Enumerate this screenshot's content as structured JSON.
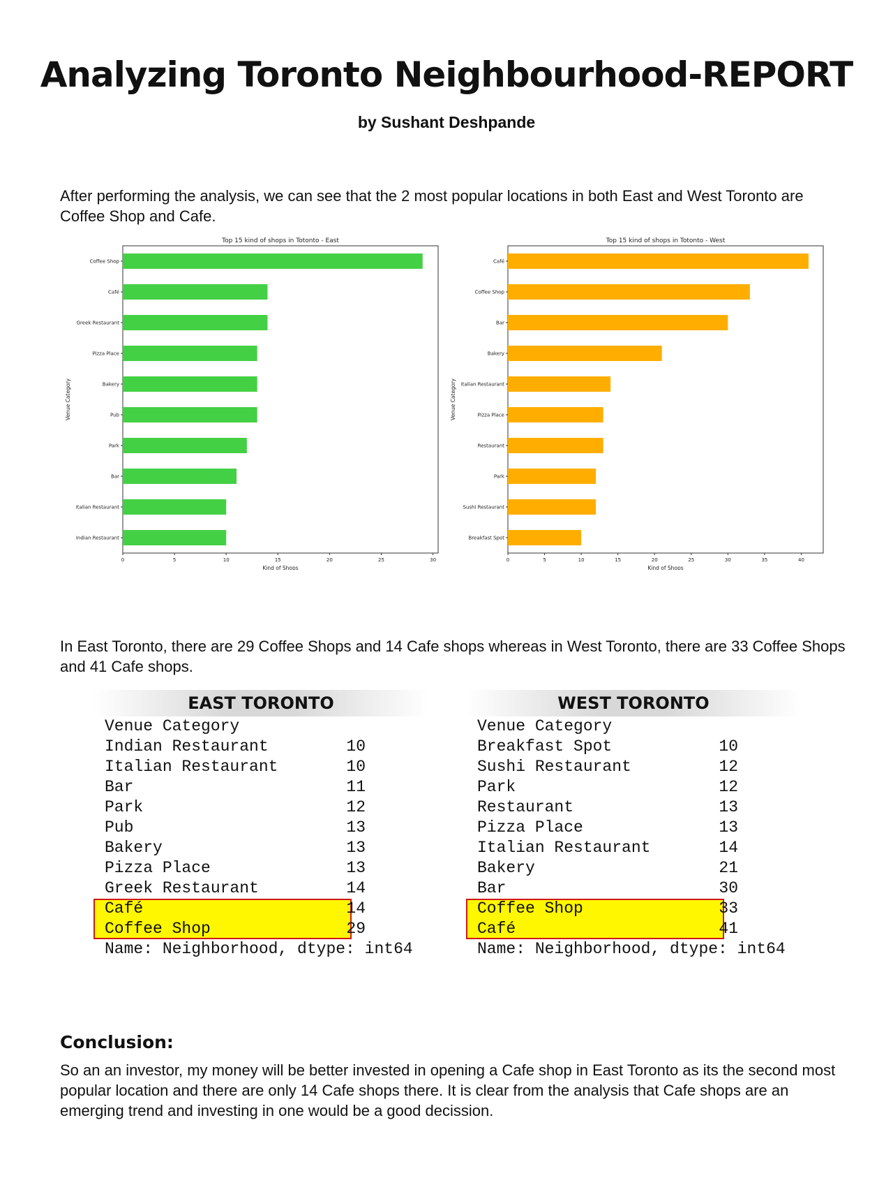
{
  "report": {
    "title": "Analyzing Toronto Neighbourhood-REPORT",
    "byline": "by Sushant Deshpande",
    "intro": "After performing the analysis, we can see that the 2 most popular locations in both East and West Toronto are Coffee Shop and Cafe.",
    "counts_text": "In East Toronto, there are 29 Coffee Shops and 14 Cafe shops whereas in West Toronto, there are 33 Coffee Shops and 41 Cafe shops.",
    "conclusion_heading": "Conclusion:",
    "conclusion_text": "So an an investor, my money will be better invested in opening a Cafe shop in East Toronto as its the second most popular location and there are only 14 Cafe shops there. It is clear from the analysis that Cafe shops are an emerging trend and investing in one would be a good decission."
  },
  "chart_data": [
    {
      "type": "bar",
      "orientation": "horizontal",
      "title": "Top 15 kind of shops in Totonto - East",
      "xlabel": "Kind of Shops",
      "ylabel": "Venue Category",
      "categories": [
        "Coffee Shop",
        "Café",
        "Greek Restaurant",
        "Pizza Place",
        "Bakery",
        "Pub",
        "Park",
        "Bar",
        "Italian Restaurant",
        "Indian Restaurant"
      ],
      "values": [
        29,
        14,
        14,
        13,
        13,
        13,
        12,
        11,
        10,
        10
      ],
      "xlim": [
        0,
        30.5
      ],
      "xticks": [
        0,
        5,
        10,
        15,
        20,
        25,
        30
      ],
      "color": "#44d044",
      "grid": false
    },
    {
      "type": "bar",
      "orientation": "horizontal",
      "title": "Top 15 kind of shops in Totonto - West",
      "xlabel": "Kind of Shops",
      "ylabel": "Venue Category",
      "categories": [
        "Café",
        "Coffee Shop",
        "Bar",
        "Bakery",
        "Italian Restaurant",
        "Pizza Place",
        "Restaurant",
        "Park",
        "Sushi Restaurant",
        "Breakfast Spot"
      ],
      "values": [
        41,
        33,
        30,
        21,
        14,
        13,
        13,
        12,
        12,
        10
      ],
      "xlim": [
        0,
        43
      ],
      "xticks": [
        0,
        5,
        10,
        15,
        20,
        25,
        30,
        35,
        40
      ],
      "color": "#ffae00",
      "grid": false
    }
  ],
  "tables": {
    "east": {
      "heading": "EAST TORONTO",
      "header_line": "Venue Category",
      "rows": [
        {
          "name": "Indian Restaurant",
          "value": "10"
        },
        {
          "name": "Italian Restaurant",
          "value": "10"
        },
        {
          "name": "Bar",
          "value": "11"
        },
        {
          "name": "Park",
          "value": "12"
        },
        {
          "name": "Pub",
          "value": "13"
        },
        {
          "name": "Bakery",
          "value": "13"
        },
        {
          "name": "Pizza Place",
          "value": "13"
        },
        {
          "name": "Greek Restaurant",
          "value": "14"
        },
        {
          "name": "Café",
          "value": "14"
        },
        {
          "name": "Coffee Shop",
          "value": "29"
        }
      ],
      "footer": "Name: Neighborhood, dtype: int64"
    },
    "west": {
      "heading": "WEST TORONTO",
      "header_line": "Venue Category",
      "rows": [
        {
          "name": "Breakfast Spot",
          "value": "10"
        },
        {
          "name": "Sushi Restaurant",
          "value": "12"
        },
        {
          "name": "Park",
          "value": "12"
        },
        {
          "name": "Restaurant",
          "value": "13"
        },
        {
          "name": "Pizza Place",
          "value": "13"
        },
        {
          "name": "Italian Restaurant",
          "value": "14"
        },
        {
          "name": "Bakery",
          "value": "21"
        },
        {
          "name": "Bar",
          "value": "30"
        },
        {
          "name": "Coffee Shop",
          "value": "33"
        },
        {
          "name": "Café",
          "value": "41"
        }
      ],
      "footer": "Name: Neighborhood, dtype: int64"
    },
    "highlight_color": "#fff700",
    "highlight_border": "#d01818"
  }
}
